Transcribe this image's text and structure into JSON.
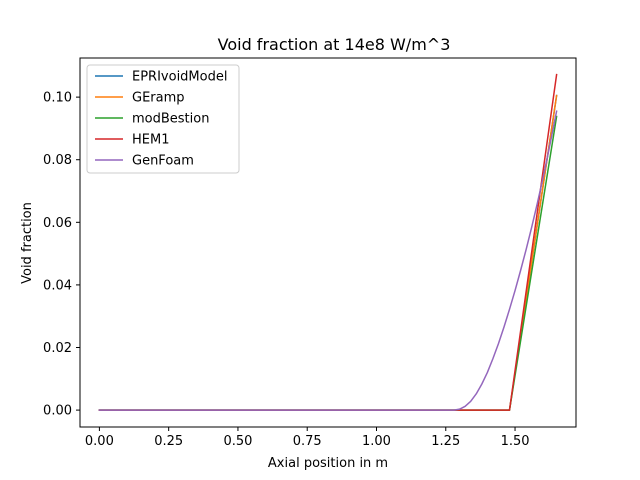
{
  "chart_data": {
    "type": "line",
    "title": "Void fraction at 14e8 W/m^3",
    "xlabel": "Axial position in m",
    "ylabel": "Void fraction",
    "xlim": [
      -0.07,
      1.72
    ],
    "ylim": [
      -0.0054,
      0.1125
    ],
    "x_ticks": [
      0.0,
      0.25,
      0.5,
      0.75,
      1.0,
      1.25,
      1.5
    ],
    "x_tick_labels": [
      "0.00",
      "0.25",
      "0.50",
      "0.75",
      "1.00",
      "1.25",
      "1.50"
    ],
    "y_ticks": [
      0.0,
      0.02,
      0.04,
      0.06,
      0.08,
      0.1
    ],
    "y_tick_labels": [
      "0.00",
      "0.02",
      "0.04",
      "0.06",
      "0.08",
      "0.10"
    ],
    "grid": false,
    "legend_position": "top-left",
    "series": [
      {
        "name": "EPRIvoidModel",
        "color": "#1f77b4",
        "x": [
          0.0,
          1.48,
          1.65
        ],
        "y": [
          0.0,
          0.0,
          0.1005
        ]
      },
      {
        "name": "GEramp",
        "color": "#ff7f0e",
        "x": [
          0.0,
          1.48,
          1.65
        ],
        "y": [
          0.0,
          0.0,
          0.1005
        ]
      },
      {
        "name": "modBestion",
        "color": "#2ca02c",
        "x": [
          0.0,
          1.48,
          1.65
        ],
        "y": [
          0.0,
          0.0,
          0.0938
        ]
      },
      {
        "name": "HEM1",
        "color": "#d62728",
        "x": [
          0.0,
          1.48,
          1.65
        ],
        "y": [
          0.0,
          0.0,
          0.1072
        ]
      },
      {
        "name": "GenFoam",
        "color": "#9467bd",
        "x": [
          0.0,
          1.28,
          1.3,
          1.32,
          1.34,
          1.36,
          1.38,
          1.4,
          1.42,
          1.44,
          1.46,
          1.48,
          1.5,
          1.52,
          1.54,
          1.56,
          1.58,
          1.6,
          1.62,
          1.65
        ],
        "y": [
          0.0,
          0.0,
          0.0003,
          0.0012,
          0.0028,
          0.0052,
          0.0083,
          0.012,
          0.0164,
          0.0212,
          0.0265,
          0.0322,
          0.0382,
          0.0446,
          0.0513,
          0.0584,
          0.0659,
          0.0738,
          0.0822,
          0.0955
        ]
      }
    ]
  }
}
